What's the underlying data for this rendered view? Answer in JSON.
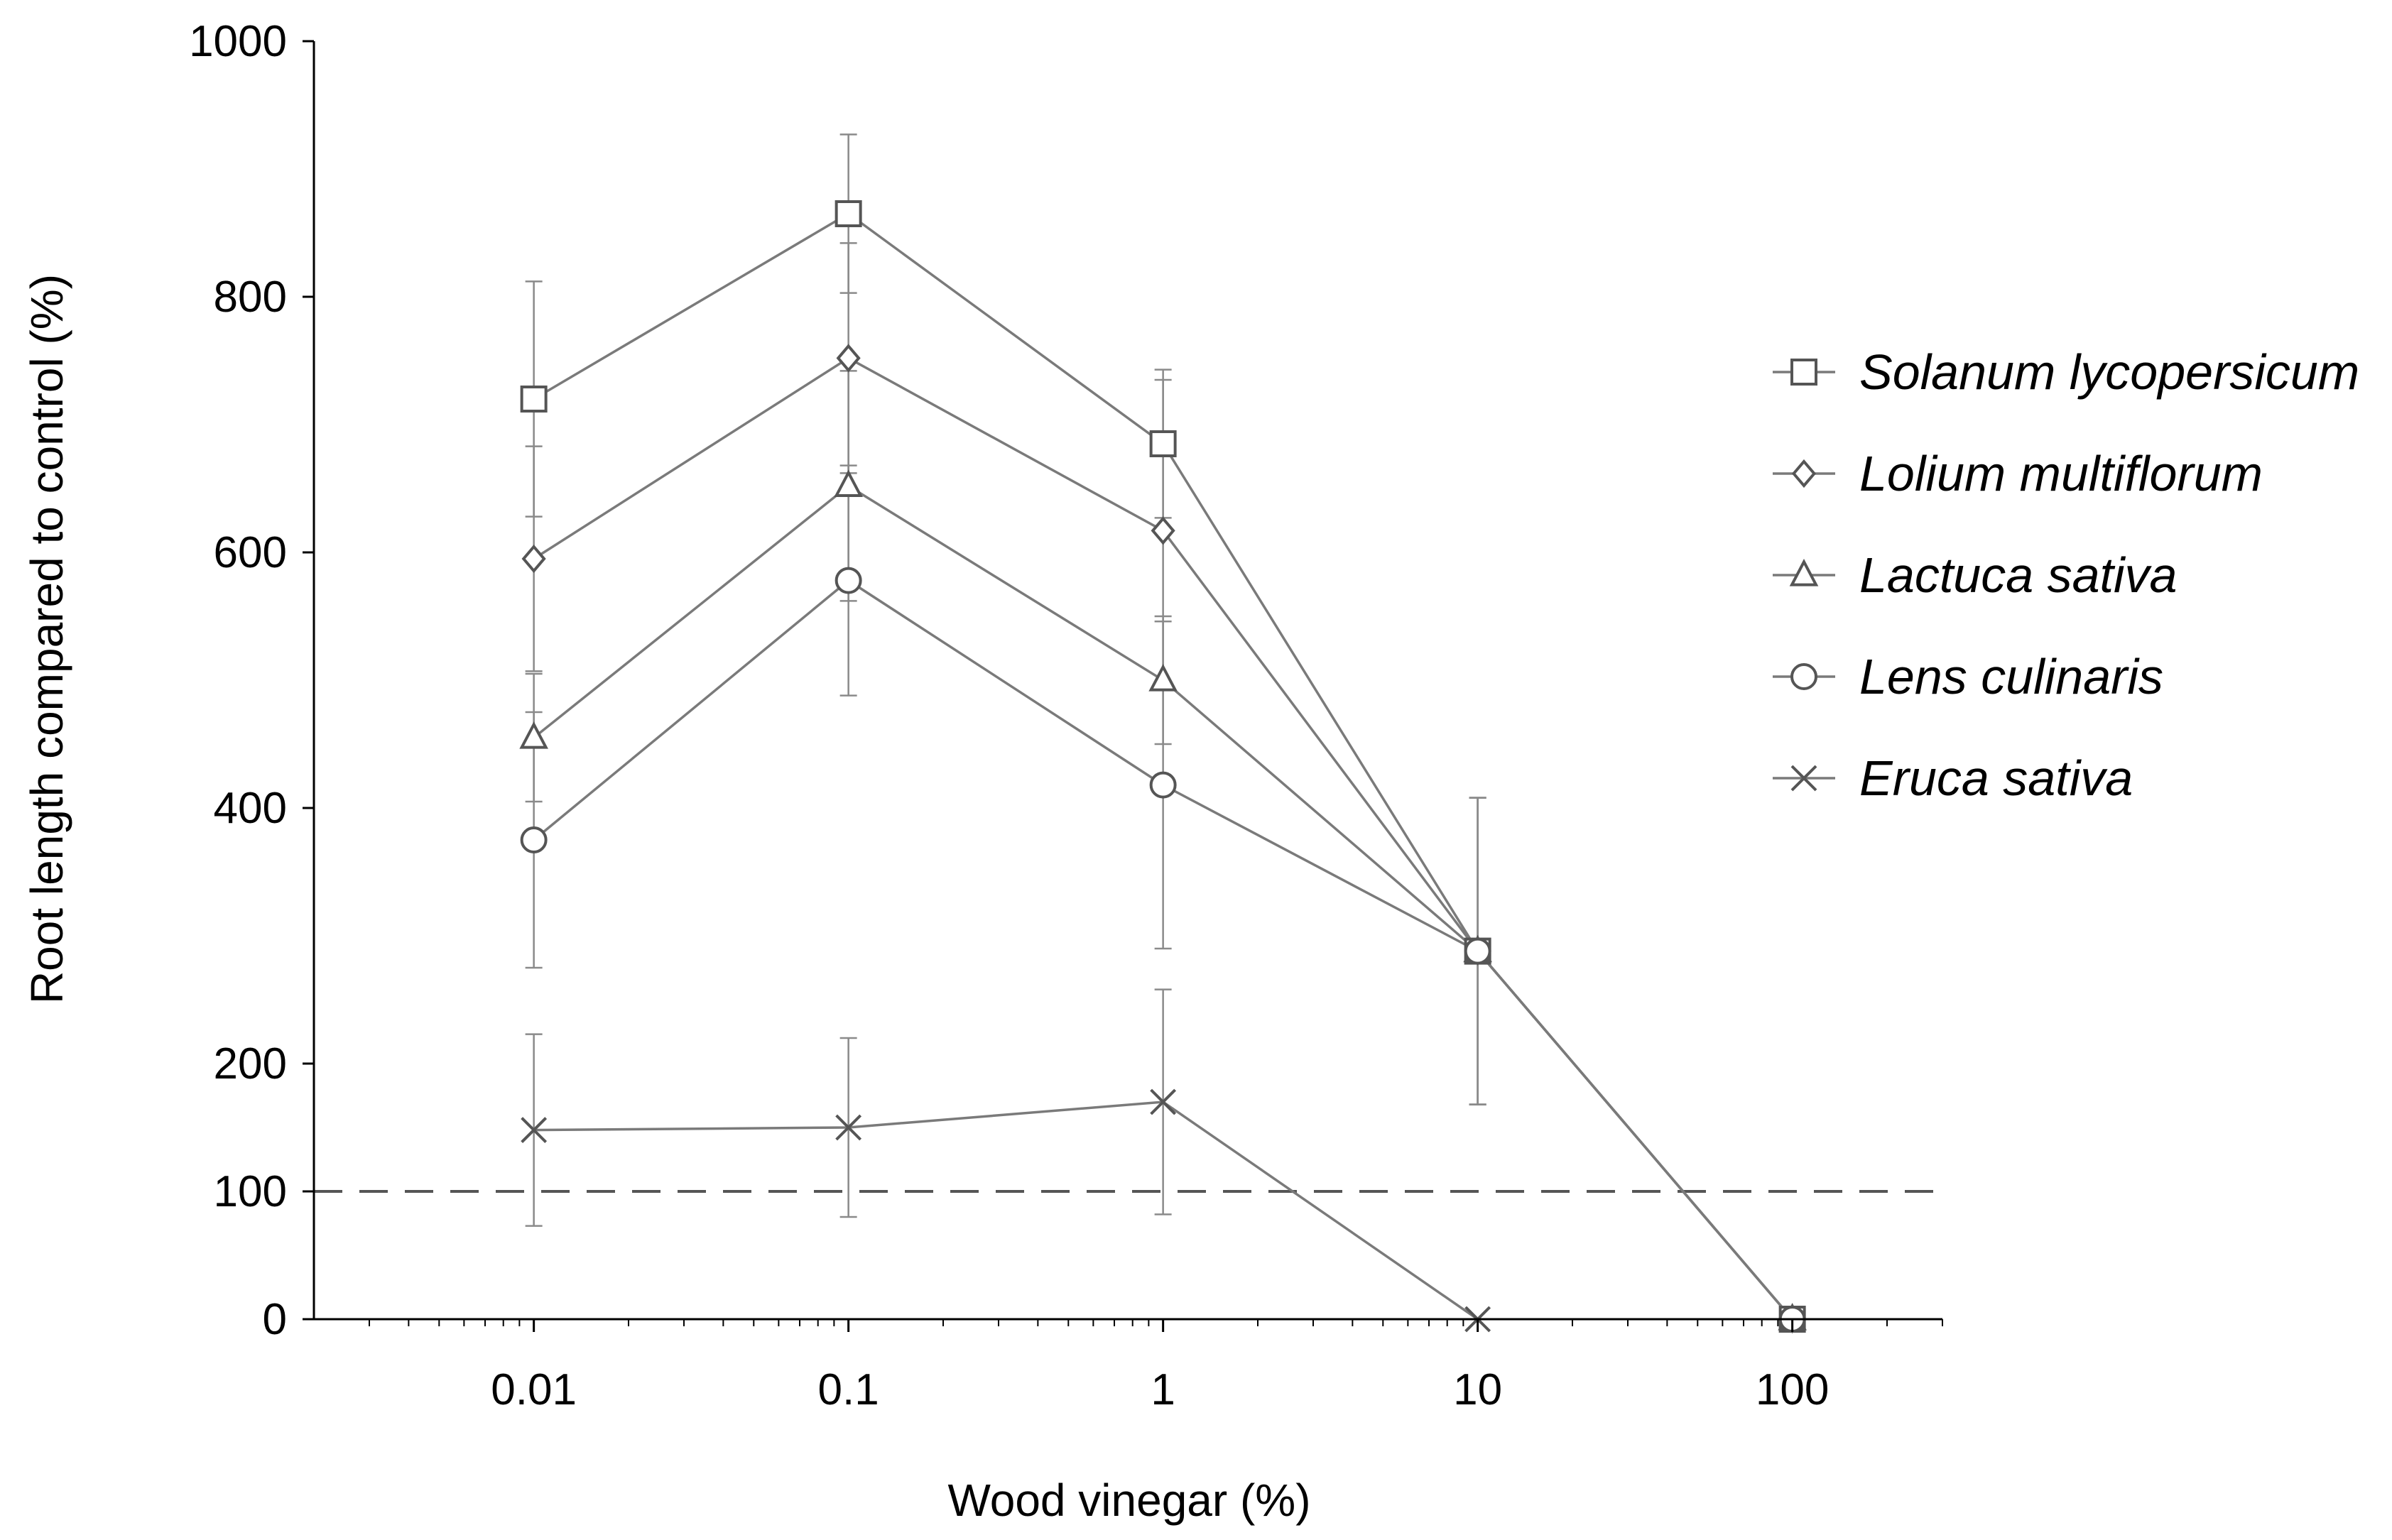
{
  "chart_data": {
    "type": "line",
    "title": "",
    "xlabel": "Wood vinegar (%)",
    "ylabel": "Root length compared to control (%)",
    "x_scale": "log",
    "x": [
      0.01,
      0.1,
      1,
      10,
      100
    ],
    "x_tick_labels": [
      "0.01",
      "0.1",
      "1",
      "10",
      "100"
    ],
    "xlim": [
      0.002,
      300
    ],
    "ylim": [
      0,
      1000
    ],
    "y_ticks": [
      0,
      100,
      200,
      400,
      600,
      800,
      1000
    ],
    "y_tick_labels": [
      "0",
      "100",
      "200",
      "400",
      "600",
      "800",
      "1000"
    ],
    "reference_line": {
      "y": 100,
      "style": "dashed"
    },
    "legend_position": "right",
    "series": [
      {
        "name": "Solanum lycopersicum",
        "marker": "square",
        "values": [
          720,
          865,
          685,
          288,
          0
        ],
        "errors": [
          92,
          62,
          58,
          120,
          0
        ]
      },
      {
        "name": "Lolium multiflorum",
        "marker": "diamond",
        "values": [
          595,
          752,
          617,
          288,
          0
        ],
        "errors": [
          88,
          90,
          118,
          120,
          0
        ]
      },
      {
        "name": "Lactuca sativa",
        "marker": "triangle",
        "values": [
          455,
          652,
          500,
          288,
          0
        ],
        "errors": [
          50,
          90,
          50,
          120,
          0
        ]
      },
      {
        "name": "Lens culinaris",
        "marker": "circle",
        "values": [
          375,
          578,
          418,
          288,
          0
        ],
        "errors": [
          100,
          90,
          128,
          120,
          0
        ]
      },
      {
        "name": "Eruca sativa",
        "marker": "x",
        "values": [
          148,
          150,
          170,
          0,
          null
        ],
        "errors": [
          75,
          70,
          88,
          0,
          0
        ]
      }
    ],
    "colors": {
      "lines": "#7a7a7a",
      "axis": "#000000",
      "markers": "#555555"
    }
  }
}
